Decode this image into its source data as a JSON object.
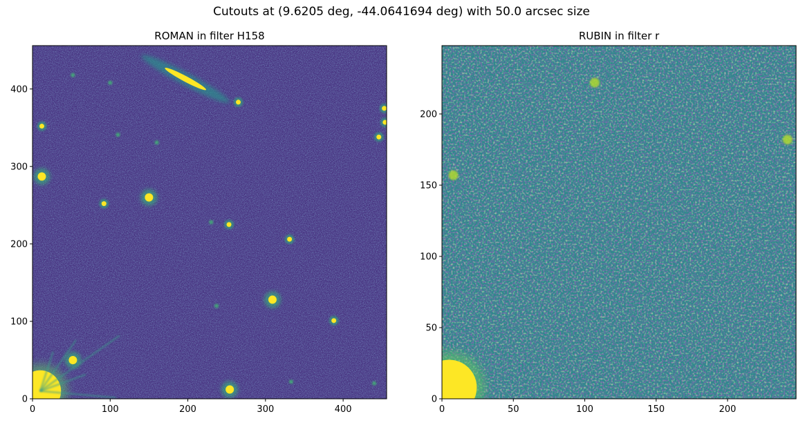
{
  "figure": {
    "suptitle": "Cutouts at (9.6205 deg, -44.0641694 deg) with 50.0 arcsec size"
  },
  "chart_data": [
    {
      "type": "heatmap",
      "title": "ROMAN in filter H158",
      "colormap": "viridis",
      "background_color": "#46317e",
      "xlim": [
        0,
        456
      ],
      "ylim": [
        0,
        456
      ],
      "xticks": [
        0,
        100,
        200,
        300,
        400
      ],
      "yticks": [
        0,
        100,
        200,
        300,
        400
      ],
      "sources": [
        {
          "x": 197,
          "y": 413,
          "kind": "edge-on galaxy",
          "angle": -28,
          "length": 40,
          "width": 8
        },
        {
          "x": 265,
          "y": 383,
          "kind": "point"
        },
        {
          "x": 12,
          "y": 352,
          "kind": "point"
        },
        {
          "x": 446,
          "y": 338,
          "kind": "point"
        },
        {
          "x": 453,
          "y": 375,
          "kind": "point"
        },
        {
          "x": 454,
          "y": 357,
          "kind": "point"
        },
        {
          "x": 160,
          "y": 331,
          "kind": "faint"
        },
        {
          "x": 110,
          "y": 341,
          "kind": "faint"
        },
        {
          "x": 100,
          "y": 408,
          "kind": "faint"
        },
        {
          "x": 52,
          "y": 418,
          "kind": "faint"
        },
        {
          "x": 12,
          "y": 287,
          "kind": "galaxy"
        },
        {
          "x": 150,
          "y": 260,
          "kind": "galaxy"
        },
        {
          "x": 92,
          "y": 252,
          "kind": "point"
        },
        {
          "x": 230,
          "y": 228,
          "kind": "faint"
        },
        {
          "x": 253,
          "y": 225,
          "kind": "point"
        },
        {
          "x": 331,
          "y": 206,
          "kind": "point"
        },
        {
          "x": 309,
          "y": 128,
          "kind": "galaxy"
        },
        {
          "x": 388,
          "y": 101,
          "kind": "point"
        },
        {
          "x": 237,
          "y": 120,
          "kind": "faint"
        },
        {
          "x": 52,
          "y": 50,
          "kind": "galaxy"
        },
        {
          "x": 254,
          "y": 12,
          "kind": "galaxy"
        },
        {
          "x": 333,
          "y": 22,
          "kind": "faint"
        },
        {
          "x": 440,
          "y": 20,
          "kind": "faint"
        },
        {
          "x": 10,
          "y": 10,
          "kind": "bright star"
        }
      ]
    },
    {
      "type": "heatmap",
      "title": "RUBIN in filter r",
      "colormap": "viridis",
      "background_color": "#2c8a8b",
      "xlim": [
        0,
        248
      ],
      "ylim": [
        0,
        248
      ],
      "xticks": [
        0,
        50,
        100,
        150,
        200
      ],
      "yticks": [
        0,
        50,
        100,
        150,
        200
      ],
      "sources": [
        {
          "x": 107,
          "y": 222,
          "kind": "faint"
        },
        {
          "x": 242,
          "y": 182,
          "kind": "faint"
        },
        {
          "x": 8,
          "y": 157,
          "kind": "faint"
        },
        {
          "x": 5,
          "y": 8,
          "kind": "bright star"
        }
      ]
    }
  ]
}
